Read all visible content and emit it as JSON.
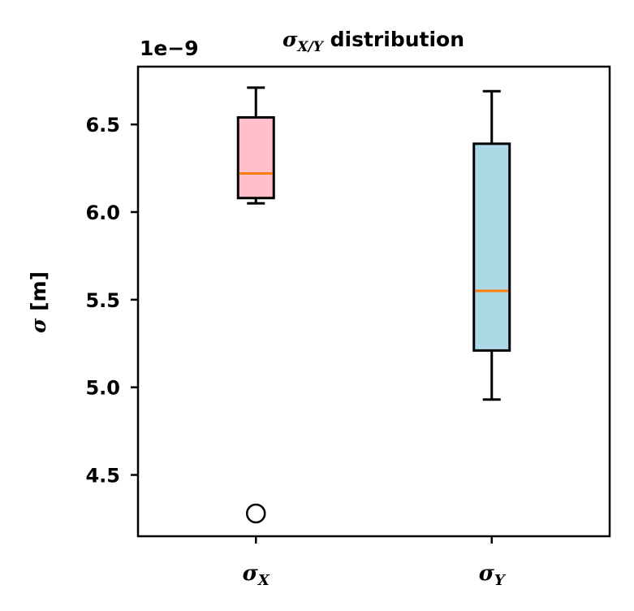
{
  "chart_data": {
    "type": "box",
    "title_main": "σ",
    "title_sub": "X/Y",
    "title_rest": " distribution",
    "ylabel": "σ [m]",
    "ylabel_sigma": "σ",
    "ylabel_rest": " [m]",
    "offset_text": "1e−9",
    "ylim": [
      4.15,
      6.83
    ],
    "y_ticks": [
      4.5,
      5.0,
      5.5,
      6.0,
      6.5
    ],
    "y_tick_labels": [
      "4.5",
      "5.0",
      "5.5",
      "6.0",
      "6.5"
    ],
    "categories": [
      {
        "symbol": "σ",
        "sub": "X"
      },
      {
        "symbol": "σ",
        "sub": "Y"
      }
    ],
    "series": [
      {
        "whisker_low": 6.05,
        "q1": 6.08,
        "median": 6.22,
        "q3": 6.54,
        "whisker_high": 6.71,
        "outliers": [
          4.28
        ],
        "fill": "#ffc0cb"
      },
      {
        "whisker_low": 4.93,
        "q1": 5.21,
        "median": 5.55,
        "q3": 6.39,
        "whisker_high": 6.69,
        "outliers": [],
        "fill": "#add8e6"
      }
    ],
    "median_color": "#ff7f0e",
    "grid": false,
    "legend": "none"
  }
}
